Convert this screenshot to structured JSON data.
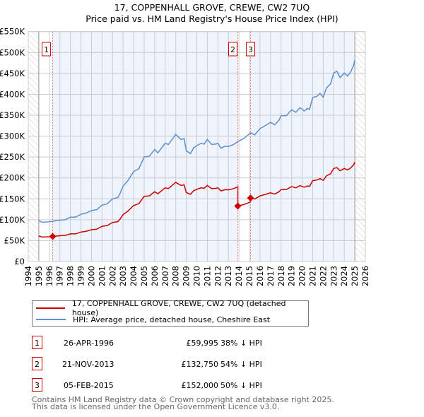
{
  "chart_data": {
    "type": "line",
    "title": "17, COPPENHALL GROVE, CREWE, CW2 7UQ",
    "subtitle": "Price paid vs. HM Land Registry's House Price Index (HPI)",
    "xlim": [
      1994,
      2026
    ],
    "ylim": [
      0,
      550000
    ],
    "y_ticks": [
      {
        "v": 0,
        "label": "£0"
      },
      {
        "v": 50000,
        "label": "£50K"
      },
      {
        "v": 100000,
        "label": "£100K"
      },
      {
        "v": 150000,
        "label": "£150K"
      },
      {
        "v": 200000,
        "label": "£200K"
      },
      {
        "v": 250000,
        "label": "£250K"
      },
      {
        "v": 300000,
        "label": "£300K"
      },
      {
        "v": 350000,
        "label": "£350K"
      },
      {
        "v": 400000,
        "label": "£400K"
      },
      {
        "v": 450000,
        "label": "£450K"
      },
      {
        "v": 500000,
        "label": "£500K"
      },
      {
        "v": 550000,
        "label": "£550K"
      }
    ],
    "x_ticks": [
      "1994",
      "1995",
      "1996",
      "1997",
      "1998",
      "1999",
      "2000",
      "2001",
      "2002",
      "2003",
      "2004",
      "2005",
      "2006",
      "2007",
      "2008",
      "2009",
      "2010",
      "2011",
      "2012",
      "2013",
      "2014",
      "2015",
      "2016",
      "2017",
      "2018",
      "2019",
      "2020",
      "2021",
      "2022",
      "2023",
      "2024",
      "2025",
      "2026"
    ],
    "grid": true,
    "data_range": [
      1995,
      2025
    ],
    "colors": {
      "property": "#cc0000",
      "hpi": "#5b8fd4",
      "shade": "#eef3fc"
    },
    "series": [
      {
        "name": "HPI: Average price, detached house, Cheshire East",
        "x": [
          1995.0,
          1995.3,
          1996.0,
          1996.5,
          1997.0,
          1997.5,
          1998.0,
          1998.5,
          1999.0,
          1999.5,
          2000.0,
          2000.5,
          2001.0,
          2001.5,
          2002.0,
          2002.5,
          2002.7,
          2003.0,
          2003.5,
          2004.0,
          2004.5,
          2005.0,
          2005.5,
          2006.0,
          2006.3,
          2007.0,
          2007.3,
          2007.8,
          2008.0,
          2008.5,
          2008.8,
          2009.0,
          2009.4,
          2009.7,
          2010.0,
          2010.4,
          2010.7,
          2011.0,
          2011.4,
          2011.8,
          2012.0,
          2012.3,
          2012.7,
          2013.0,
          2013.5,
          2013.9,
          2014.5,
          2015.1,
          2015.5,
          2016.0,
          2016.5,
          2017.0,
          2017.4,
          2017.8,
          2018.0,
          2018.5,
          2019.0,
          2019.4,
          2019.8,
          2020.2,
          2020.5,
          2020.7,
          2021.0,
          2021.4,
          2021.7,
          2022.0,
          2022.3,
          2022.7,
          2023.0,
          2023.3,
          2023.6,
          2024.0,
          2024.3,
          2024.6,
          2024.9,
          2025.0
        ],
        "values": [
          98000,
          94000,
          95000,
          97000,
          99000,
          100000,
          106000,
          106000,
          113000,
          116000,
          122000,
          124000,
          135000,
          138000,
          150000,
          153000,
          162000,
          180000,
          195000,
          215000,
          222000,
          250000,
          252000,
          268000,
          260000,
          283000,
          280000,
          297000,
          304000,
          292000,
          294000,
          265000,
          258000,
          272000,
          277000,
          283000,
          281000,
          292000,
          280000,
          281000,
          283000,
          271000,
          276000,
          275000,
          280000,
          287000,
          295000,
          308000,
          303000,
          318000,
          325000,
          333000,
          327000,
          338000,
          349000,
          349000,
          363000,
          357000,
          368000,
          360000,
          366000,
          364000,
          392000,
          395000,
          402000,
          393000,
          415000,
          425000,
          451000,
          455000,
          440000,
          451000,
          444000,
          453000,
          470000,
          482000
        ]
      },
      {
        "name": "17, COPPENHALL GROVE, CREWE, CW2 7UQ (detached house)",
        "derived": "HPI-indexed from each sale"
      }
    ],
    "sales": [
      {
        "n": "1",
        "x": 1996.32,
        "value": 59995
      },
      {
        "n": "2",
        "x": 2013.89,
        "value": 132750
      },
      {
        "n": "3",
        "x": 2015.1,
        "value": 152000
      }
    ]
  },
  "legend": {
    "property": "17, COPPENHALL GROVE, CREWE, CW2 7UQ (detached house)",
    "hpi": "HPI: Average price, detached house, Cheshire East"
  },
  "transactions": [
    {
      "n": "1",
      "date": "26-APR-1996",
      "price": "£59,995",
      "hpi": "38% ↓ HPI"
    },
    {
      "n": "2",
      "date": "21-NOV-2013",
      "price": "£132,750",
      "hpi": "54% ↓ HPI"
    },
    {
      "n": "3",
      "date": "05-FEB-2015",
      "price": "£152,000",
      "hpi": "50% ↓ HPI"
    }
  ],
  "footer": {
    "line1": "Contains HM Land Registry data © Crown copyright and database right 2025.",
    "line2": "This data is licensed under the Open Government Licence v3.0."
  }
}
